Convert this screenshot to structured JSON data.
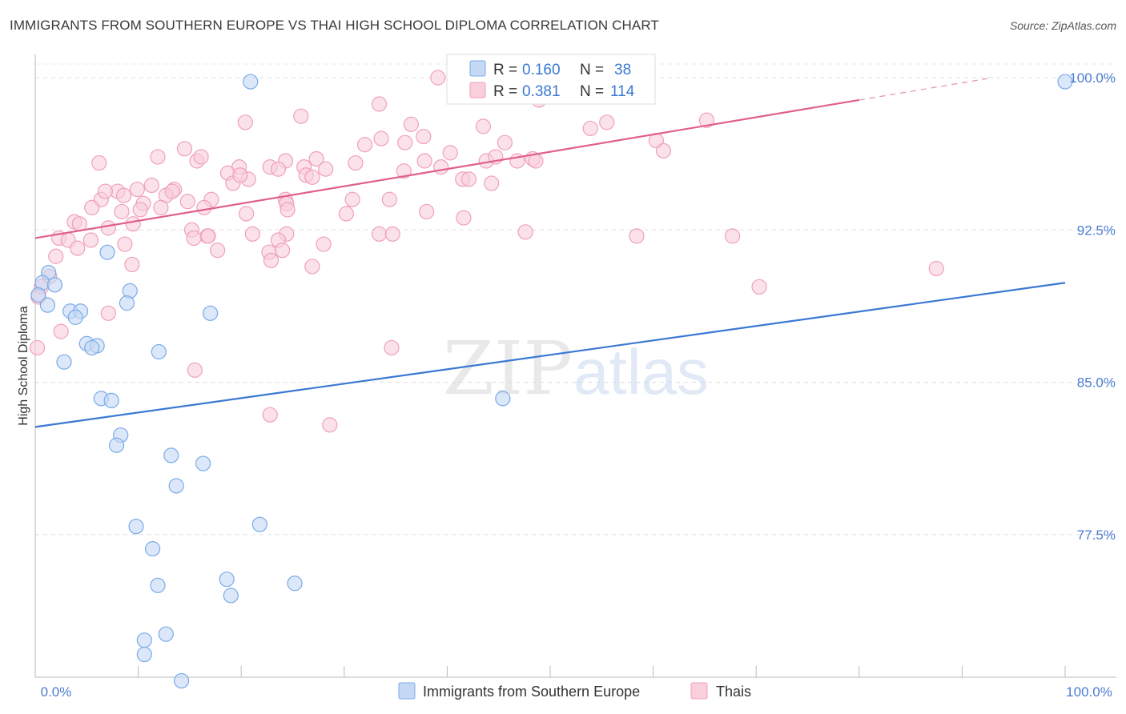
{
  "title": "IMMIGRANTS FROM SOUTHERN EUROPE VS THAI HIGH SCHOOL DIPLOMA CORRELATION CHART",
  "source": "Source: ZipAtlas.com",
  "watermark": {
    "zip": "ZIP",
    "atlas": "atlas"
  },
  "chart_data": {
    "type": "scatter",
    "title": "IMMIGRANTS FROM SOUTHERN EUROPE VS THAI HIGH SCHOOL DIPLOMA CORRELATION CHART",
    "xlabel": "",
    "ylabel": "High School Diploma",
    "xlim": [
      0,
      100
    ],
    "ylim": [
      70,
      100.8
    ],
    "x_tick_labels": [
      {
        "value": 0,
        "label": "0.0%"
      },
      {
        "value": 100,
        "label": "100.0%"
      }
    ],
    "x_minor_ticks": [
      0,
      10,
      20,
      30,
      40,
      50,
      60,
      70,
      80,
      90,
      100
    ],
    "y_ticks": [
      {
        "value": 100,
        "label": "100.0%"
      },
      {
        "value": 92.5,
        "label": "92.5%"
      },
      {
        "value": 85,
        "label": "85.0%"
      },
      {
        "value": 77.5,
        "label": "77.5%"
      }
    ],
    "grid": "horizontal dashed",
    "legend": {
      "placement": "top-center",
      "rows": [
        {
          "r_label": "R =",
          "r_value": "0.160",
          "n_label": "N =",
          "n_value": "38"
        },
        {
          "r_label": "R =",
          "r_value": "0.381",
          "n_label": "N =",
          "n_value": "114"
        }
      ]
    },
    "series": [
      {
        "name": "Immigrants from Southern Europe",
        "color": "#7aaae8",
        "fill": "#c5d9f5",
        "line_color": "#3a78d4",
        "trend": {
          "x0": 0,
          "y0": 82.8,
          "x1": 100,
          "y1": 89.9
        },
        "points": [
          [
            20.9,
            99.8
          ],
          [
            100,
            99.8
          ],
          [
            7.0,
            91.4
          ],
          [
            1.3,
            90.4
          ],
          [
            0.7,
            89.9
          ],
          [
            1.9,
            89.8
          ],
          [
            9.2,
            89.5
          ],
          [
            0.3,
            89.3
          ],
          [
            1.2,
            88.8
          ],
          [
            3.4,
            88.5
          ],
          [
            4.4,
            88.5
          ],
          [
            17.0,
            88.4
          ],
          [
            3.9,
            88.2
          ],
          [
            8.9,
            88.9
          ],
          [
            5.0,
            86.9
          ],
          [
            6.0,
            86.8
          ],
          [
            5.5,
            86.7
          ],
          [
            12.0,
            86.5
          ],
          [
            2.8,
            86.0
          ],
          [
            6.4,
            84.2
          ],
          [
            7.4,
            84.1
          ],
          [
            45.4,
            84.2
          ],
          [
            8.3,
            82.4
          ],
          [
            7.9,
            81.9
          ],
          [
            13.2,
            81.4
          ],
          [
            16.3,
            81.0
          ],
          [
            13.7,
            79.9
          ],
          [
            21.8,
            78.0
          ],
          [
            9.8,
            77.9
          ],
          [
            11.4,
            76.8
          ],
          [
            18.6,
            75.3
          ],
          [
            25.2,
            75.1
          ],
          [
            11.9,
            75.0
          ],
          [
            19.0,
            74.5
          ],
          [
            12.7,
            72.6
          ],
          [
            10.6,
            72.3
          ],
          [
            10.6,
            71.6
          ],
          [
            14.2,
            70.3
          ]
        ]
      },
      {
        "name": "Thais",
        "color": "#f0a0b8",
        "fill": "#f9cfdc",
        "line_color": "#e0608a",
        "trend": {
          "x0": 0,
          "y0": 92.1,
          "x1": 80,
          "y1": 98.9
        },
        "trend_extension": {
          "x0": 80,
          "y0": 98.9,
          "x1": 93,
          "y1": 100.0
        },
        "points": [
          [
            39.1,
            100.0
          ],
          [
            41.0,
            100.0
          ],
          [
            25.8,
            98.1
          ],
          [
            55.5,
            97.8
          ],
          [
            36.5,
            97.7
          ],
          [
            43.5,
            97.6
          ],
          [
            48.9,
            98.9
          ],
          [
            33.4,
            98.7
          ],
          [
            20.4,
            97.8
          ],
          [
            33.6,
            97.0
          ],
          [
            53.9,
            97.5
          ],
          [
            14.5,
            96.5
          ],
          [
            32.0,
            96.7
          ],
          [
            35.9,
            96.8
          ],
          [
            11.9,
            96.1
          ],
          [
            27.3,
            96.0
          ],
          [
            37.7,
            97.1
          ],
          [
            45.6,
            96.8
          ],
          [
            40.3,
            96.3
          ],
          [
            48.3,
            96.0
          ],
          [
            15.7,
            95.9
          ],
          [
            16.1,
            96.1
          ],
          [
            24.3,
            95.9
          ],
          [
            26.1,
            95.6
          ],
          [
            37.8,
            95.9
          ],
          [
            6.2,
            95.8
          ],
          [
            43.8,
            95.9
          ],
          [
            44.7,
            96.1
          ],
          [
            28.2,
            95.5
          ],
          [
            31.1,
            95.8
          ],
          [
            46.8,
            95.9
          ],
          [
            19.8,
            95.6
          ],
          [
            22.8,
            95.6
          ],
          [
            23.6,
            95.5
          ],
          [
            35.8,
            95.4
          ],
          [
            39.4,
            95.6
          ],
          [
            48.6,
            95.9
          ],
          [
            26.3,
            95.2
          ],
          [
            26.9,
            95.1
          ],
          [
            18.7,
            95.3
          ],
          [
            41.5,
            95.0
          ],
          [
            20.7,
            95.0
          ],
          [
            42.1,
            95.0
          ],
          [
            44.3,
            94.8
          ],
          [
            11.3,
            94.7
          ],
          [
            8.0,
            94.4
          ],
          [
            9.9,
            94.5
          ],
          [
            13.5,
            94.5
          ],
          [
            19.2,
            94.8
          ],
          [
            19.9,
            95.2
          ],
          [
            6.4,
            94.0
          ],
          [
            6.8,
            94.4
          ],
          [
            8.6,
            94.2
          ],
          [
            12.7,
            94.2
          ],
          [
            13.3,
            94.4
          ],
          [
            14.8,
            93.9
          ],
          [
            17.1,
            94.0
          ],
          [
            10.5,
            93.8
          ],
          [
            24.3,
            94.0
          ],
          [
            24.4,
            93.8
          ],
          [
            30.8,
            94.0
          ],
          [
            34.4,
            94.0
          ],
          [
            5.5,
            93.6
          ],
          [
            8.4,
            93.4
          ],
          [
            10.2,
            93.5
          ],
          [
            12.2,
            93.6
          ],
          [
            16.4,
            93.6
          ],
          [
            20.5,
            93.3
          ],
          [
            24.5,
            93.5
          ],
          [
            30.2,
            93.3
          ],
          [
            38.0,
            93.4
          ],
          [
            41.6,
            93.1
          ],
          [
            3.8,
            92.9
          ],
          [
            4.3,
            92.8
          ],
          [
            7.1,
            92.6
          ],
          [
            9.5,
            92.8
          ],
          [
            15.2,
            92.5
          ],
          [
            16.7,
            92.2
          ],
          [
            21.1,
            92.3
          ],
          [
            24.4,
            92.3
          ],
          [
            33.4,
            92.3
          ],
          [
            47.6,
            92.4
          ],
          [
            2.3,
            92.1
          ],
          [
            3.2,
            92.0
          ],
          [
            5.4,
            92.0
          ],
          [
            15.4,
            92.1
          ],
          [
            23.6,
            92.0
          ],
          [
            34.7,
            92.3
          ],
          [
            4.1,
            91.6
          ],
          [
            8.7,
            91.8
          ],
          [
            16.8,
            92.2
          ],
          [
            17.7,
            91.5
          ],
          [
            22.7,
            91.4
          ],
          [
            24.0,
            91.5
          ],
          [
            28.0,
            91.8
          ],
          [
            58.4,
            92.2
          ],
          [
            67.7,
            92.2
          ],
          [
            2.0,
            91.2
          ],
          [
            9.4,
            90.8
          ],
          [
            22.9,
            91.0
          ],
          [
            26.9,
            90.7
          ],
          [
            70.3,
            89.7
          ],
          [
            87.5,
            90.6
          ],
          [
            1.4,
            90.2
          ],
          [
            0.6,
            89.7
          ],
          [
            0.3,
            89.2
          ],
          [
            7.1,
            88.4
          ],
          [
            2.5,
            87.5
          ],
          [
            0.2,
            86.7
          ],
          [
            34.6,
            86.7
          ],
          [
            15.5,
            85.6
          ],
          [
            22.8,
            83.4
          ],
          [
            28.6,
            82.9
          ],
          [
            60.3,
            96.9
          ],
          [
            61.0,
            96.4
          ],
          [
            65.2,
            97.9
          ]
        ]
      }
    ]
  }
}
